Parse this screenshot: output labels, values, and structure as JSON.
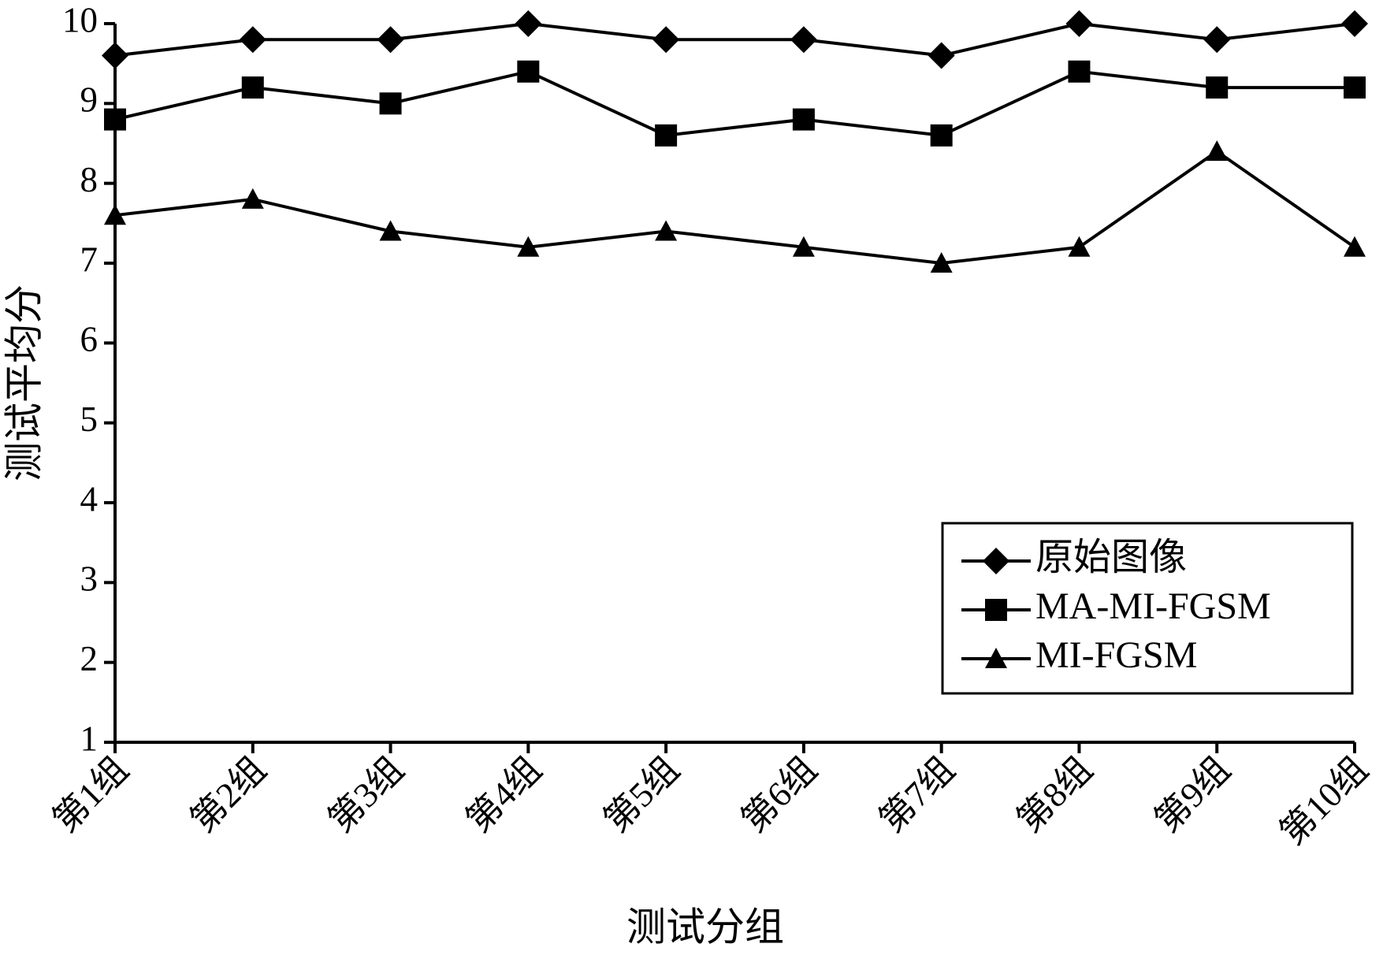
{
  "chart_data": {
    "type": "line",
    "x_label": "测试分组",
    "y_label": "测试平均分",
    "categories": [
      "第1组",
      "第2组",
      "第3组",
      "第4组",
      "第5组",
      "第6组",
      "第7组",
      "第8组",
      "第9组",
      "第10组"
    ],
    "series": [
      {
        "name": "原始图像",
        "color": "#000000",
        "marker": "diamond",
        "values": [
          9.6,
          9.8,
          9.8,
          10,
          9.8,
          9.8,
          9.6,
          10,
          9.8,
          10
        ]
      },
      {
        "name": "MA-MI-FGSM",
        "color": "#000000",
        "marker": "square",
        "values": [
          8.8,
          9.2,
          9.0,
          9.4,
          8.6,
          8.8,
          8.6,
          9.4,
          9.2,
          9.2
        ]
      },
      {
        "name": "MI-FGSM",
        "color": "#000000",
        "marker": "triangle",
        "values": [
          7.6,
          7.8,
          7.4,
          7.2,
          7.4,
          7.2,
          7.0,
          7.2,
          8.4,
          7.2
        ]
      }
    ],
    "ylim": [
      1,
      10
    ],
    "yticks": [
      1,
      2,
      3,
      4,
      5,
      6,
      7,
      8,
      9,
      10
    ],
    "grid": false,
    "legend": "lower right"
  }
}
